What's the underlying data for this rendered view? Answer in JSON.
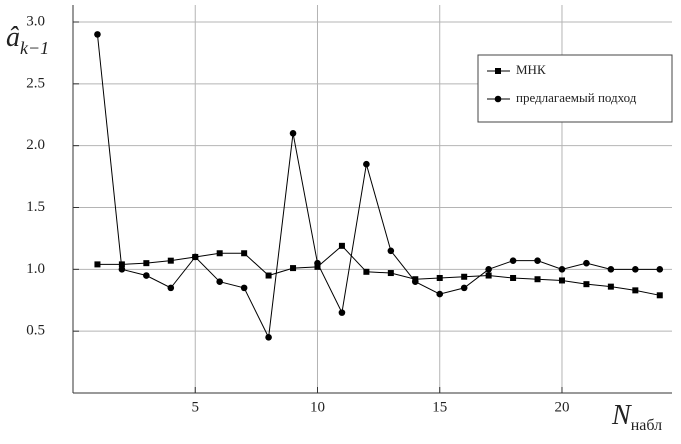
{
  "chart_data": {
    "type": "line",
    "y_label": {
      "main": "â",
      "sub": "k−1"
    },
    "x_label": {
      "main": "N",
      "sub": "набл"
    },
    "x": [
      1,
      2,
      3,
      4,
      5,
      6,
      7,
      8,
      9,
      10,
      11,
      12,
      13,
      14,
      15,
      16,
      17,
      18,
      19,
      20,
      21,
      22,
      23,
      24
    ],
    "series": [
      {
        "name": "МНК",
        "color": "#000000",
        "marker": "square",
        "values": [
          1.04,
          1.04,
          1.05,
          1.07,
          1.1,
          1.13,
          1.13,
          0.95,
          1.01,
          1.02,
          1.19,
          0.98,
          0.97,
          0.92,
          0.93,
          0.94,
          0.95,
          0.93,
          0.92,
          0.91,
          0.88,
          0.86,
          0.83,
          0.79
        ]
      },
      {
        "name": "предлагаемый подход",
        "color": "#000000",
        "marker": "circle",
        "values": [
          2.9,
          1.0,
          0.95,
          0.85,
          1.1,
          0.9,
          0.85,
          0.45,
          2.1,
          1.05,
          0.65,
          1.85,
          1.15,
          0.9,
          0.8,
          0.85,
          1.0,
          1.07,
          1.07,
          1.0,
          1.05,
          1.0,
          1.0,
          1.0
        ]
      }
    ],
    "xlim": [
      0,
      24.5
    ],
    "ylim": [
      0,
      3.0
    ],
    "xticks": [
      5,
      10,
      15,
      20
    ],
    "yticks": [
      0.5,
      {
        "value": 1,
        "label": "1.0"
      },
      1.5,
      {
        "value": 2,
        "label": "2.0"
      },
      2.5,
      {
        "value": 3,
        "label": "3.0"
      }
    ],
    "grid": true,
    "legend": "top-right"
  }
}
